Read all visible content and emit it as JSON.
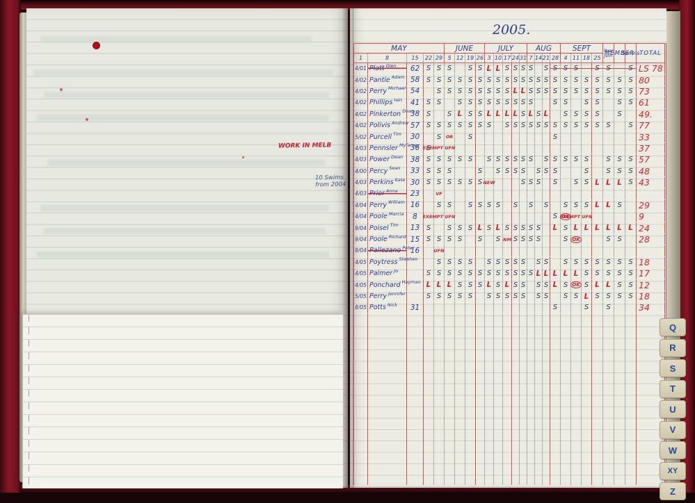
{
  "year_label": "2005.",
  "left_page": {
    "red_note": "WORK IN MELB",
    "blue_note": "10 Swims from 2004"
  },
  "index_tabs": [
    "Q",
    "R",
    "S",
    "T",
    "U",
    "V",
    "W",
    "XY",
    "Z"
  ],
  "ledger": {
    "header": {
      "year_line1": "Year",
      "year_line2": "Join",
      "member": "MEMBER",
      "swims": "Swims",
      "total": "TOTAL"
    },
    "months": [
      {
        "label": "MAY",
        "dates": [
          "1",
          "8",
          "15",
          "22",
          "29"
        ]
      },
      {
        "label": "JUNE",
        "dates": [
          "5",
          "12",
          "19",
          "26"
        ]
      },
      {
        "label": "JULY",
        "dates": [
          "3",
          "10",
          "17",
          "24",
          "31"
        ]
      },
      {
        "label": "AUG",
        "dates": [
          "7",
          "14",
          "21",
          "28"
        ]
      },
      {
        "label": "SEPT",
        "dates": [
          "4",
          "11",
          "18",
          "25"
        ]
      }
    ],
    "rows": [
      {
        "year": "4/01",
        "surname": "Platt",
        "given": "Glen",
        "struck": true,
        "swims": "62",
        "marks": [
          "S",
          "S",
          "S",
          "",
          "S",
          "S",
          "L",
          "L",
          "S",
          "S",
          "S",
          "S",
          "",
          "S",
          "S",
          "S",
          "S",
          "",
          "S",
          "S",
          "",
          "S"
        ],
        "strike_from": 14,
        "total": "LS 78"
      },
      {
        "year": "4/02",
        "surname": "Pantle",
        "given": "Adam",
        "struck": false,
        "swims": "58",
        "marks": [
          "S",
          "S",
          "S",
          "S",
          "S",
          "S",
          "S",
          "S",
          "S",
          "S",
          "S",
          "S",
          "S",
          "S",
          "S",
          "S",
          "S",
          "S",
          "S",
          "S",
          "S",
          "S"
        ],
        "total": "80"
      },
      {
        "year": "4/02",
        "surname": "Perry",
        "given": "Michael",
        "struck": false,
        "swims": "54",
        "marks": [
          "",
          "S",
          "S",
          "S",
          "S",
          "S",
          "S",
          "S",
          "S",
          "L",
          "L",
          "S",
          "S",
          "S",
          "S",
          "S",
          "S",
          "S",
          "S",
          "S",
          "S",
          "S"
        ],
        "total": "73"
      },
      {
        "year": "4/02",
        "surname": "Phillips",
        "given": "Iain",
        "struck": false,
        "swims": "41",
        "marks": [
          "S",
          "S",
          "",
          "S",
          "S",
          "S",
          "S",
          "S",
          "S",
          "S",
          "S",
          "S",
          "",
          "",
          "S",
          "S",
          "",
          "S",
          "S",
          "",
          "S",
          "S"
        ],
        "total": "61"
      },
      {
        "year": "4/02",
        "surname": "Pinkerton",
        "given": "Dean",
        "struck": false,
        "swims": "38",
        "marks": [
          "S",
          "",
          "S",
          "L",
          "S",
          "S",
          "L",
          "L",
          "L",
          "L",
          "S",
          "L",
          "S",
          "L",
          "",
          "S",
          "S",
          "S",
          "S",
          "",
          "S",
          ""
        ],
        "total": "49."
      },
      {
        "year": "4/02",
        "surname": "Polivis",
        "given": "Andrew",
        "struck": false,
        "swims": "57",
        "marks": [
          "S",
          "S",
          "S",
          "S",
          "S",
          "S",
          "S",
          "",
          "S",
          "S",
          "S",
          "S",
          "S",
          "S",
          "S",
          "S",
          "S",
          "S",
          "S",
          "S",
          "",
          "S"
        ],
        "total": "77"
      },
      {
        "year": "5/02",
        "surname": "Purcell",
        "given": "Tim",
        "struck": false,
        "swims": "30",
        "marks": [
          "",
          "S",
          "OR",
          "",
          "S",
          "",
          "",
          "",
          "",
          "",
          "",
          "",
          "",
          "",
          "S",
          "",
          "",
          "",
          "",
          "",
          "",
          ""
        ],
        "total": "33"
      },
      {
        "year": "4/03",
        "surname": "Pennsler",
        "given": "Myfanwy",
        "struck": false,
        "swims": "36",
        "marks": [
          "S",
          "EXEMPT UFN",
          "",
          "",
          "",
          "",
          "",
          "",
          "",
          "",
          "",
          "",
          "",
          "",
          "",
          "",
          "",
          "",
          "",
          "",
          "",
          ""
        ],
        "total": "37"
      },
      {
        "year": "4/03",
        "surname": "Power",
        "given": "Dean",
        "struck": false,
        "swims": "38",
        "marks": [
          "S",
          "S",
          "S",
          "S",
          "S",
          "",
          "S",
          "S",
          "S",
          "S",
          "S",
          "S",
          "",
          "S",
          "S",
          "S",
          "S",
          "S",
          "",
          "S",
          "S",
          "S"
        ],
        "total": "57"
      },
      {
        "year": "4/00",
        "surname": "Percy",
        "given": "Sean",
        "struck": false,
        "swims": "33",
        "marks": [
          "S",
          "S",
          "S",
          "",
          "",
          "S",
          "",
          "S",
          "S",
          "S",
          "S",
          "",
          "S",
          "S",
          "S",
          "",
          "",
          "S",
          "",
          "S",
          "S",
          "S"
        ],
        "total": "48"
      },
      {
        "year": "4/03",
        "surname": "Perkins",
        "given": "Kate",
        "struck": false,
        "swims": "30",
        "marks": [
          "S",
          "S",
          "S",
          "S",
          "S",
          "S",
          "NEW",
          "",
          "",
          "",
          "S",
          "S",
          "S",
          "",
          "S",
          "",
          "S",
          "S",
          "L",
          "L",
          "L",
          "S"
        ],
        "total": "43"
      },
      {
        "year": "4/03",
        "surname": "Prior",
        "given": "Anna",
        "struck": true,
        "swims": "23",
        "marks": [
          "",
          "VF",
          "",
          "",
          "",
          "",
          "",
          "",
          "",
          "",
          "",
          "",
          "",
          "",
          "",
          "",
          "",
          "",
          "",
          "",
          "",
          ""
        ],
        "total": ""
      },
      {
        "year": "4/04",
        "surname": "Perry",
        "given": "William",
        "struck": false,
        "swims": "16",
        "marks": [
          "",
          "S",
          "S",
          "",
          "S",
          "S",
          "S",
          "S",
          "",
          "S",
          "",
          "S",
          "",
          "S",
          "",
          "S",
          "S",
          "S",
          "L",
          "L",
          "S",
          ""
        ],
        "total": "29"
      },
      {
        "year": "4/04",
        "surname": "Poole",
        "given": "Marcia",
        "struck": false,
        "swims": "8",
        "marks": [
          "",
          "EXEMPT UFN",
          "",
          "",
          "",
          "",
          "",
          "",
          "",
          "",
          "",
          "",
          "",
          "",
          "S",
          "OK",
          "EXEMPT UFN",
          "",
          "",
          "",
          "",
          ""
        ],
        "total": "9"
      },
      {
        "year": "9/04",
        "surname": "Poisel",
        "given": "Tim",
        "struck": false,
        "swims": "13",
        "marks": [
          "S",
          "",
          "S",
          "S",
          "S",
          "L",
          "S",
          "L",
          "S",
          "S",
          "S",
          "S",
          "S",
          "",
          "L",
          "S",
          "L",
          "L",
          "L",
          "L",
          "L",
          "L"
        ],
        "total": "24"
      },
      {
        "year": "9/04",
        "surname": "Poole",
        "given": "Richard",
        "struck": false,
        "swims": "15",
        "marks": [
          "S",
          "S",
          "S",
          "S",
          "",
          "S",
          "",
          "S",
          "NM",
          "S",
          "S",
          "S",
          "S",
          "",
          "",
          "S",
          "OK",
          "",
          "",
          "S",
          "S",
          ""
        ],
        "total": "28"
      },
      {
        "year": "9/04",
        "surname": "Pallezano",
        "given": "Peter",
        "struck": true,
        "swims": "16",
        "marks": [
          "",
          "UFN",
          "",
          "",
          "",
          "",
          "",
          "",
          "",
          "",
          "",
          "",
          "",
          "",
          "",
          "",
          "",
          "",
          "",
          "",
          "",
          ""
        ],
        "total": ""
      },
      {
        "year": "4/05",
        "surname": "Poytress",
        "given": "Stephen",
        "struck": false,
        "swims": "",
        "marks": [
          "",
          "S",
          "S",
          "S",
          "S",
          "",
          "S",
          "S",
          "S",
          "S",
          "S",
          "",
          "S",
          "S",
          "",
          "S",
          "S",
          "S",
          "S",
          "S",
          "S",
          "S"
        ],
        "total": "18"
      },
      {
        "year": "4/05",
        "surname": "Palmer",
        "given": "Jo",
        "struck": false,
        "swims": "",
        "marks": [
          "S",
          "S",
          "S",
          "S",
          "S",
          "S",
          "S",
          "S",
          "S",
          "S",
          "S",
          "S",
          "L",
          "L",
          "L",
          "L",
          "L",
          "S",
          "S",
          "S",
          "S",
          "S"
        ],
        "total": "17"
      },
      {
        "year": "4/05",
        "surname": "Ponchard",
        "given": "Hayman",
        "struck": false,
        "swims": "",
        "marks": [
          "L",
          "L",
          "L",
          "S",
          "S",
          "S",
          "L",
          "S",
          "L",
          "S",
          "S",
          "",
          "S",
          "S",
          "L",
          "S",
          "OK",
          "S",
          "L",
          "L",
          "S",
          "S"
        ],
        "total": "12"
      },
      {
        "year": "5/05",
        "surname": "Perry",
        "given": "Jennifer",
        "struck": false,
        "swims": "",
        "marks": [
          "S",
          "S",
          "S",
          "S",
          "S",
          "",
          "S",
          "S",
          "S",
          "S",
          "S",
          "",
          "S",
          "S",
          "",
          "S",
          "S",
          "L",
          "S",
          "S",
          "S",
          "S"
        ],
        "total": "18"
      },
      {
        "year": "8/05",
        "surname": "Potts",
        "given": "Nick",
        "struck": false,
        "swims": "31",
        "marks": [
          "",
          "",
          "",
          "",
          "",
          "",
          "",
          "",
          "",
          "",
          "",
          "",
          "",
          "",
          "S",
          "",
          "",
          "S",
          "",
          "S",
          "",
          ""
        ],
        "total": "34"
      }
    ]
  }
}
